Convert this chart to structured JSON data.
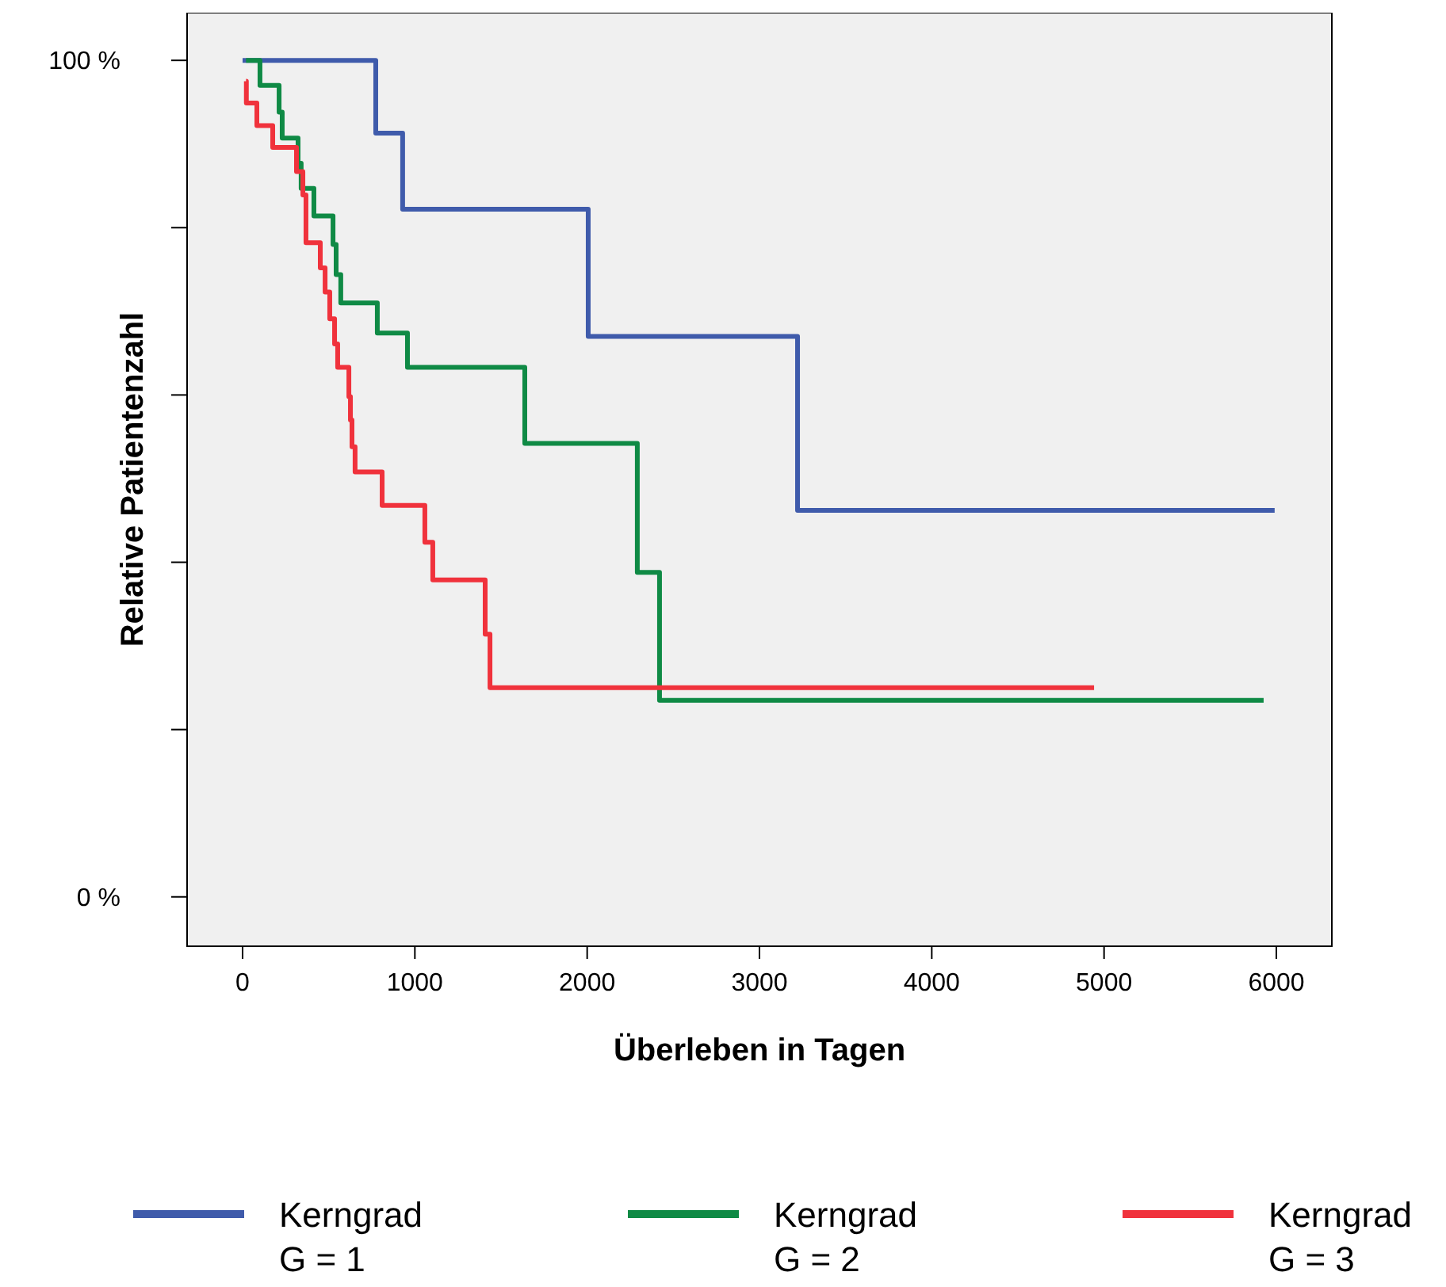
{
  "chart_data": {
    "type": "step",
    "xlabel": "Überleben in Tagen",
    "ylabel": "Relative Patientenzahl",
    "xlim": [
      -322,
      6322
    ],
    "ylim": [
      -5.9,
      105.7
    ],
    "xticks": [
      0,
      1000,
      2000,
      3000,
      4000,
      5000,
      6000
    ],
    "yticks": [
      {
        "value": 0,
        "label": "0 %"
      },
      {
        "value": 20,
        "label": null
      },
      {
        "value": 40,
        "label": null
      },
      {
        "value": 60,
        "label": null
      },
      {
        "value": 80,
        "label": null
      },
      {
        "value": 100,
        "label": "100 %"
      }
    ],
    "grid": false,
    "legend": "bottom",
    "line_style": "solid",
    "marker": "none",
    "series": [
      {
        "name": "Kerngrad G = 1",
        "color": "#3f5bab",
        "x": [
          0,
          773,
          929,
          2006,
          3221,
          5990
        ],
        "values": [
          100,
          91.3,
          82.2,
          67,
          46.2,
          46.2
        ]
      },
      {
        "name": "Kerngrad G = 2",
        "color": "#0f8a45",
        "x": [
          20,
          101,
          212,
          230,
          322,
          340,
          414,
          525,
          543,
          570,
          782,
          957,
          1638,
          2291,
          2420,
          5926
        ],
        "values": [
          100,
          97,
          93.8,
          90.7,
          87.7,
          84.7,
          81.4,
          78,
          74.4,
          71,
          67.4,
          63.3,
          54.2,
          38.8,
          23.5,
          23.5
        ]
      },
      {
        "name": "Kerngrad G = 3",
        "color": "#f0323c",
        "x": [
          20,
          22,
          83,
          175,
          313,
          350,
          368,
          451,
          479,
          506,
          534,
          552,
          617,
          626,
          635,
          653,
          810,
          1058,
          1104,
          1408,
          1436,
          4942
        ],
        "values": [
          97.5,
          94.9,
          92.2,
          89.6,
          86.7,
          83.9,
          78.2,
          75.2,
          72.3,
          69.1,
          66.1,
          63.3,
          59.8,
          57,
          53.8,
          50.8,
          46.8,
          42.4,
          37.9,
          31.4,
          25,
          25
        ]
      }
    ]
  }
}
